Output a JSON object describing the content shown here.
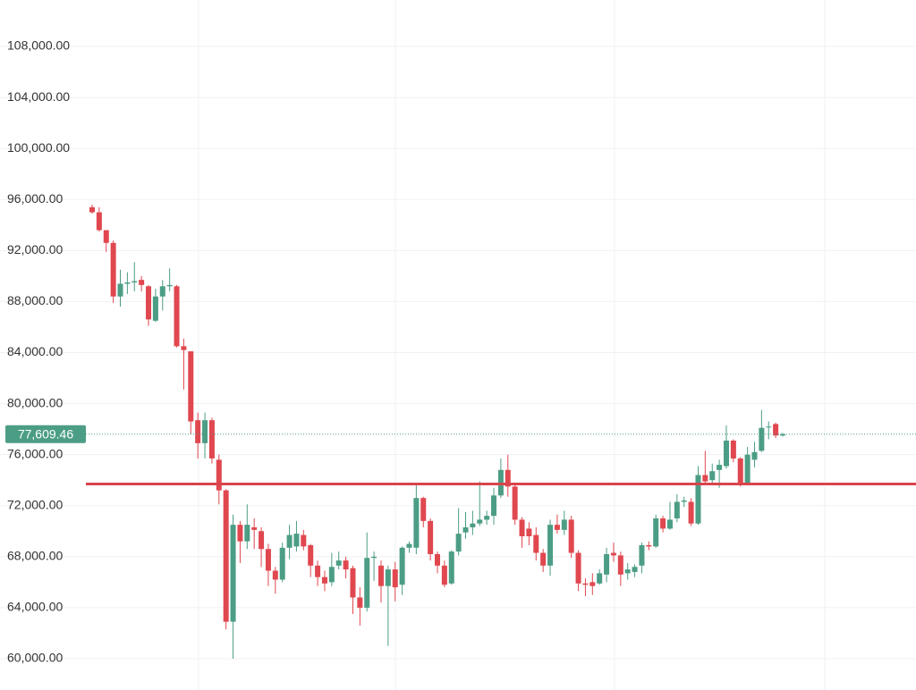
{
  "chart_data": {
    "type": "candlestick",
    "up_color": "#4c9d85",
    "down_color": "#e0474f",
    "level_color": "#d9444c",
    "ylim": [
      57547,
      111644
    ],
    "yticks": [
      {
        "value": 60000,
        "label": "60,000.00"
      },
      {
        "value": 64000,
        "label": "64,000.00"
      },
      {
        "value": 68000,
        "label": "68,000.00"
      },
      {
        "value": 72000,
        "label": "72,000.00"
      },
      {
        "value": 76000,
        "label": "76,000.00"
      },
      {
        "value": 80000,
        "label": "80,000.00"
      },
      {
        "value": 84000,
        "label": "84,000.00"
      },
      {
        "value": 88000,
        "label": "88,000.00"
      },
      {
        "value": 92000,
        "label": "92,000.00"
      },
      {
        "value": 96000,
        "label": "96,000.00"
      },
      {
        "value": 100000,
        "label": "100,000.00"
      },
      {
        "value": 104000,
        "label": "104,000.00"
      },
      {
        "value": 108000,
        "label": "108,000.00"
      }
    ],
    "grid": true,
    "last_price": {
      "value": 77609.46,
      "label": "77,609.46"
    },
    "level": 73700,
    "open": [
      95400,
      95000,
      93600,
      92600,
      88400,
      89400,
      89500,
      89700,
      89200,
      86500,
      88400,
      89200,
      89200,
      84500,
      84100,
      78700,
      76900,
      78700,
      75600,
      73200,
      62900,
      70500,
      69200,
      70300,
      70000,
      68600,
      66900,
      66200,
      68700,
      68800,
      69700,
      68900,
      67300,
      66400,
      66000,
      67300,
      67700,
      67100,
      64800,
      64000,
      67900,
      67300,
      65700,
      67000,
      65800,
      68700,
      68700,
      72600,
      70800,
      68200,
      67300,
      65900,
      68400,
      69900,
      70300,
      70600,
      70900,
      71200,
      72800,
      74800,
      73500,
      70900,
      70200,
      69700,
      68300,
      67300,
      70500,
      70100,
      70900,
      68300,
      65900,
      66000,
      65900,
      66600,
      68300,
      68100,
      66700,
      66800,
      67300,
      68900,
      68800,
      71000,
      70200,
      71000,
      72300,
      72300,
      70600,
      74400,
      74000,
      74800,
      75100,
      77100,
      75700,
      73800,
      75600,
      76300,
      78200,
      78400,
      77500
    ],
    "high": [
      95600,
      95400,
      93600,
      92800,
      90500,
      90300,
      91100,
      90000,
      89300,
      89000,
      89700,
      90600,
      89300,
      85100,
      84100,
      79300,
      79300,
      78900,
      76000,
      73300,
      71300,
      70800,
      72100,
      71000,
      70300,
      69000,
      67200,
      69100,
      70500,
      70800,
      70100,
      69000,
      67700,
      66900,
      68300,
      68400,
      68000,
      67300,
      65600,
      69900,
      68400,
      67700,
      67300,
      67600,
      68800,
      69200,
      73700,
      72700,
      71000,
      68400,
      67700,
      68500,
      71800,
      71500,
      71600,
      73900,
      71600,
      73400,
      75700,
      76000,
      73700,
      71100,
      70700,
      70300,
      68600,
      70900,
      71300,
      71600,
      71200,
      68500,
      66300,
      66700,
      67000,
      68700,
      69100,
      68400,
      67500,
      67400,
      69100,
      69200,
      71300,
      71200,
      72300,
      72900,
      72700,
      72600,
      75100,
      76300,
      75300,
      75600,
      78300,
      77200,
      75800,
      76600,
      77000,
      79500,
      78600,
      78500,
      77700
    ],
    "low": [
      94900,
      93500,
      91900,
      87900,
      87600,
      88600,
      88800,
      88800,
      86100,
      86400,
      87300,
      88800,
      84400,
      81100,
      77600,
      75700,
      75700,
      75300,
      72100,
      62300,
      60000,
      67500,
      68600,
      68600,
      67200,
      65700,
      65100,
      66000,
      67800,
      68400,
      68500,
      66400,
      65700,
      65300,
      65700,
      67000,
      66300,
      63500,
      62600,
      63700,
      66100,
      64400,
      61000,
      64500,
      65000,
      68300,
      68200,
      70300,
      67700,
      66700,
      65600,
      65800,
      68100,
      69400,
      69700,
      70400,
      70500,
      70500,
      72600,
      72700,
      70500,
      68700,
      68900,
      67700,
      66800,
      66500,
      69800,
      69700,
      67900,
      65300,
      64900,
      65000,
      65800,
      66000,
      67600,
      65700,
      66200,
      66400,
      66700,
      68500,
      68700,
      69900,
      70100,
      70700,
      71900,
      70400,
      70500,
      73600,
      73700,
      73400,
      74900,
      75400,
      73500,
      73700,
      75000,
      76200,
      77200,
      77300,
      77400
    ],
    "close": [
      95000,
      93600,
      92600,
      88400,
      89400,
      89500,
      89600,
      89300,
      86600,
      88400,
      89200,
      89300,
      84500,
      84200,
      78600,
      76900,
      78700,
      75700,
      73200,
      62900,
      70500,
      69200,
      70500,
      70100,
      68600,
      66900,
      66200,
      68700,
      69700,
      69800,
      68800,
      67300,
      66400,
      65900,
      67200,
      67700,
      67000,
      64800,
      64000,
      67900,
      68000,
      65700,
      67000,
      65600,
      68700,
      69000,
      72600,
      70800,
      68200,
      67300,
      65800,
      68400,
      69800,
      70300,
      70600,
      70900,
      71200,
      72800,
      74800,
      73500,
      70900,
      69600,
      69600,
      68300,
      67300,
      70500,
      70100,
      70900,
      68300,
      65900,
      65800,
      65700,
      66700,
      68200,
      68100,
      66600,
      67000,
      67200,
      68900,
      68800,
      71000,
      70200,
      70900,
      72300,
      72400,
      70600,
      74400,
      73900,
      74700,
      75200,
      77100,
      75700,
      73700,
      76000,
      76200,
      78100,
      78200,
      77500,
      77609.46
    ]
  }
}
